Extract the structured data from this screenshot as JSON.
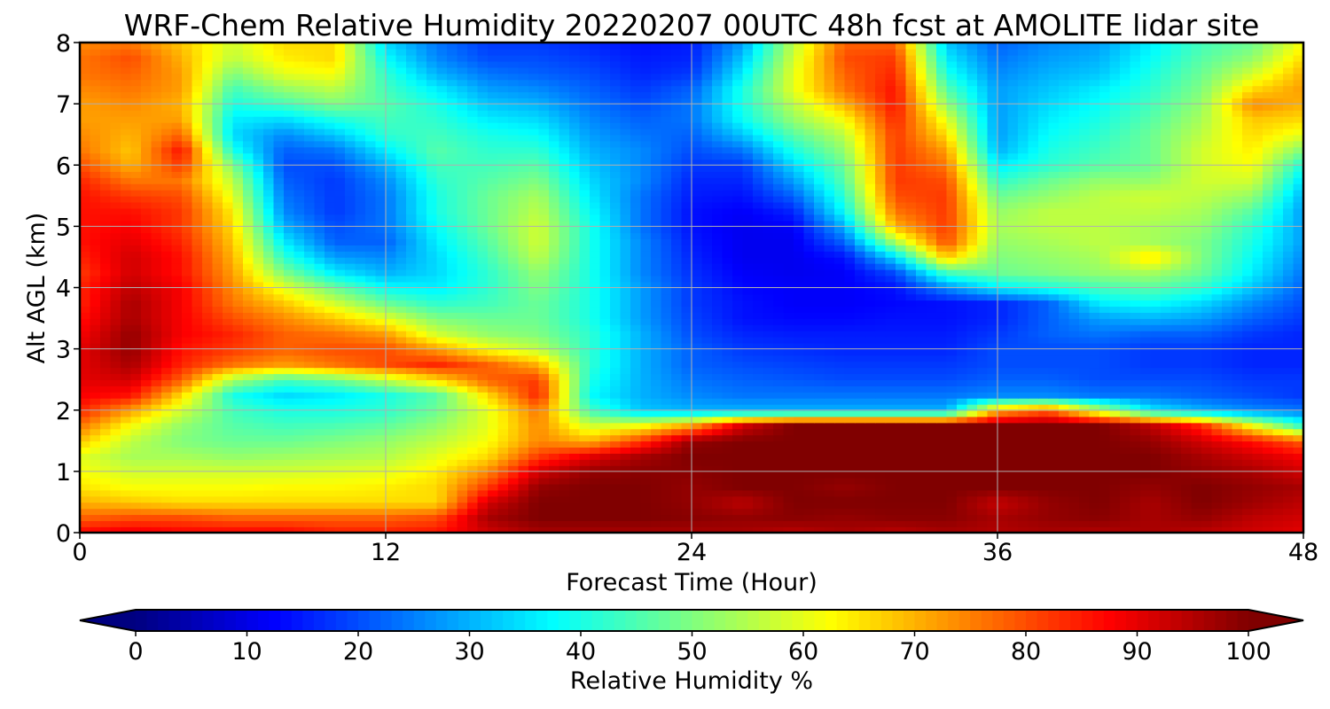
{
  "chart_data": {
    "type": "heatmap",
    "title": "WRF-Chem Relative Humidity 20220207 00UTC 48h fcst at AMOLITE lidar site",
    "xlabel": "Forecast Time (Hour)",
    "ylabel": "Alt AGL (km)",
    "xlim": [
      0,
      48
    ],
    "ylim": [
      0,
      8
    ],
    "xticks": [
      0,
      12,
      24,
      36,
      48
    ],
    "yticks": [
      0,
      1,
      2,
      3,
      4,
      5,
      6,
      7,
      8
    ],
    "grid": true,
    "colormap": "jet",
    "colorbar": {
      "label": "Relative Humidity %",
      "min": 0,
      "max": 100,
      "ticks": [
        0,
        10,
        20,
        30,
        40,
        50,
        60,
        70,
        80,
        90,
        100
      ],
      "extend": "both",
      "orientation": "horizontal"
    },
    "x": [
      0,
      2,
      4,
      6,
      8,
      10,
      12,
      14,
      16,
      18,
      20,
      22,
      24,
      26,
      28,
      30,
      32,
      34,
      36,
      38,
      40,
      42,
      44,
      46,
      48
    ],
    "y": [
      0,
      0.25,
      0.5,
      0.75,
      1,
      1.25,
      1.5,
      1.75,
      2,
      2.25,
      2.5,
      2.75,
      3,
      3.25,
      3.5,
      3.75,
      4,
      4.25,
      4.5,
      4.75,
      5,
      5.25,
      5.5,
      5.75,
      6,
      6.25,
      6.5,
      6.75,
      7,
      7.25,
      7.5,
      7.75,
      8
    ],
    "z": [
      [
        88,
        90,
        88,
        88,
        88,
        85,
        85,
        86,
        92,
        96,
        96,
        96,
        96,
        96,
        94,
        96,
        94,
        96,
        95,
        96,
        95,
        96,
        94,
        92,
        90
      ],
      [
        78,
        80,
        80,
        78,
        78,
        78,
        78,
        80,
        96,
        100,
        100,
        100,
        99,
        98,
        99,
        98,
        99,
        99,
        96,
        98,
        99,
        96,
        98,
        94,
        92
      ],
      [
        70,
        68,
        66,
        66,
        66,
        66,
        66,
        66,
        92,
        100,
        100,
        100,
        98,
        94,
        100,
        100,
        100,
        100,
        93,
        98,
        100,
        96,
        100,
        97,
        94
      ],
      [
        65,
        62,
        62,
        62,
        63,
        63,
        64,
        66,
        82,
        98,
        100,
        100,
        98,
        100,
        100,
        98,
        100,
        100,
        100,
        100,
        100,
        98,
        100,
        98,
        96
      ],
      [
        62,
        58,
        58,
        58,
        58,
        59,
        60,
        64,
        74,
        92,
        98,
        99,
        99,
        100,
        100,
        100,
        100,
        100,
        100,
        100,
        100,
        100,
        98,
        96,
        92
      ],
      [
        60,
        54,
        54,
        52,
        53,
        54,
        55,
        60,
        66,
        82,
        90,
        96,
        100,
        100,
        100,
        100,
        100,
        100,
        100,
        100,
        100,
        100,
        96,
        92,
        88
      ],
      [
        68,
        56,
        50,
        48,
        48,
        50,
        52,
        56,
        62,
        74,
        70,
        82,
        98,
        100,
        100,
        100,
        100,
        100,
        100,
        100,
        100,
        98,
        92,
        86,
        78
      ],
      [
        76,
        62,
        52,
        46,
        44,
        45,
        47,
        52,
        60,
        74,
        58,
        62,
        72,
        92,
        100,
        100,
        100,
        100,
        100,
        100,
        100,
        94,
        84,
        62,
        42
      ],
      [
        84,
        72,
        58,
        44,
        40,
        40,
        42,
        48,
        60,
        76,
        44,
        32,
        30,
        30,
        30,
        30,
        30,
        30,
        70,
        78,
        56,
        36,
        30,
        26,
        24
      ],
      [
        88,
        86,
        66,
        40,
        34,
        36,
        40,
        46,
        66,
        84,
        38,
        30,
        26,
        24,
        24,
        24,
        24,
        24,
        26,
        26,
        24,
        24,
        22,
        20,
        18
      ],
      [
        90,
        92,
        78,
        54,
        44,
        48,
        56,
        66,
        78,
        82,
        40,
        30,
        24,
        22,
        21,
        20,
        20,
        20,
        22,
        22,
        20,
        20,
        20,
        18,
        18
      ],
      [
        90,
        96,
        84,
        76,
        72,
        76,
        80,
        84,
        78,
        70,
        42,
        30,
        22,
        20,
        19,
        18,
        18,
        18,
        20,
        20,
        20,
        18,
        18,
        16,
        16
      ],
      [
        90,
        98,
        86,
        82,
        78,
        80,
        80,
        72,
        62,
        56,
        42,
        30,
        22,
        18,
        17,
        16,
        16,
        16,
        20,
        20,
        20,
        18,
        18,
        16,
        16
      ],
      [
        88,
        98,
        88,
        84,
        78,
        76,
        72,
        58,
        52,
        50,
        42,
        30,
        20,
        16,
        15,
        15,
        15,
        15,
        18,
        22,
        24,
        22,
        22,
        18,
        16
      ],
      [
        86,
        96,
        88,
        80,
        74,
        68,
        60,
        50,
        48,
        48,
        40,
        28,
        19,
        14,
        13,
        13,
        14,
        14,
        16,
        22,
        28,
        30,
        28,
        22,
        18
      ],
      [
        84,
        96,
        88,
        76,
        68,
        58,
        48,
        42,
        44,
        48,
        40,
        28,
        18,
        14,
        12,
        12,
        13,
        14,
        16,
        22,
        36,
        38,
        34,
        26,
        20
      ],
      [
        84,
        94,
        88,
        74,
        60,
        48,
        38,
        36,
        42,
        50,
        40,
        28,
        18,
        13,
        12,
        12,
        14,
        26,
        36,
        40,
        44,
        46,
        42,
        32,
        22
      ],
      [
        82,
        92,
        86,
        72,
        50,
        36,
        30,
        34,
        42,
        52,
        40,
        26,
        17,
        12,
        11,
        12,
        20,
        44,
        48,
        50,
        52,
        54,
        48,
        36,
        24
      ],
      [
        84,
        92,
        86,
        70,
        42,
        28,
        26,
        34,
        44,
        56,
        40,
        26,
        16,
        11,
        11,
        14,
        34,
        68,
        50,
        52,
        54,
        66,
        50,
        38,
        26
      ],
      [
        86,
        90,
        84,
        68,
        36,
        22,
        22,
        36,
        46,
        58,
        40,
        26,
        15,
        11,
        11,
        22,
        54,
        80,
        52,
        54,
        56,
        54,
        50,
        40,
        28
      ],
      [
        86,
        88,
        82,
        66,
        30,
        20,
        24,
        38,
        48,
        58,
        40,
        24,
        14,
        11,
        12,
        30,
        70,
        82,
        54,
        56,
        56,
        54,
        52,
        42,
        28
      ],
      [
        86,
        86,
        82,
        64,
        26,
        18,
        24,
        40,
        48,
        56,
        38,
        24,
        14,
        12,
        16,
        38,
        76,
        82,
        52,
        56,
        56,
        56,
        54,
        46,
        28
      ],
      [
        86,
        82,
        80,
        60,
        24,
        18,
        24,
        40,
        48,
        54,
        36,
        24,
        15,
        14,
        22,
        42,
        80,
        82,
        48,
        52,
        56,
        58,
        56,
        52,
        30
      ],
      [
        84,
        76,
        76,
        56,
        22,
        18,
        26,
        42,
        46,
        50,
        34,
        26,
        16,
        16,
        28,
        46,
        82,
        80,
        42,
        48,
        52,
        52,
        58,
        58,
        34
      ],
      [
        80,
        70,
        82,
        50,
        20,
        20,
        30,
        44,
        44,
        46,
        32,
        26,
        18,
        18,
        34,
        48,
        82,
        76,
        36,
        42,
        46,
        48,
        58,
        62,
        40
      ],
      [
        76,
        68,
        86,
        40,
        22,
        24,
        36,
        46,
        42,
        42,
        30,
        26,
        20,
        24,
        40,
        52,
        82,
        72,
        30,
        40,
        44,
        48,
        58,
        64,
        50
      ],
      [
        74,
        70,
        78,
        34,
        26,
        32,
        42,
        44,
        40,
        38,
        28,
        24,
        22,
        32,
        46,
        56,
        82,
        66,
        28,
        38,
        42,
        48,
        56,
        66,
        60
      ],
      [
        72,
        72,
        72,
        36,
        34,
        40,
        44,
        42,
        36,
        34,
        26,
        22,
        24,
        38,
        52,
        62,
        84,
        60,
        28,
        36,
        40,
        46,
        54,
        68,
        66
      ],
      [
        72,
        74,
        70,
        40,
        44,
        50,
        46,
        40,
        32,
        30,
        24,
        20,
        24,
        40,
        56,
        70,
        86,
        52,
        28,
        34,
        38,
        44,
        52,
        74,
        70
      ],
      [
        74,
        76,
        72,
        44,
        52,
        56,
        44,
        36,
        28,
        26,
        22,
        18,
        22,
        40,
        60,
        76,
        86,
        46,
        28,
        32,
        36,
        42,
        50,
        66,
        72
      ],
      [
        76,
        78,
        72,
        50,
        60,
        62,
        42,
        30,
        24,
        22,
        20,
        16,
        18,
        36,
        60,
        78,
        84,
        40,
        26,
        30,
        32,
        40,
        48,
        58,
        70
      ],
      [
        76,
        80,
        70,
        56,
        64,
        66,
        38,
        26,
        20,
        20,
        18,
        15,
        16,
        32,
        58,
        80,
        82,
        36,
        24,
        28,
        30,
        38,
        46,
        52,
        66
      ],
      [
        74,
        76,
        68,
        58,
        66,
        66,
        34,
        24,
        18,
        18,
        16,
        14,
        15,
        28,
        56,
        78,
        78,
        32,
        22,
        26,
        28,
        36,
        44,
        48,
        62
      ]
    ]
  }
}
